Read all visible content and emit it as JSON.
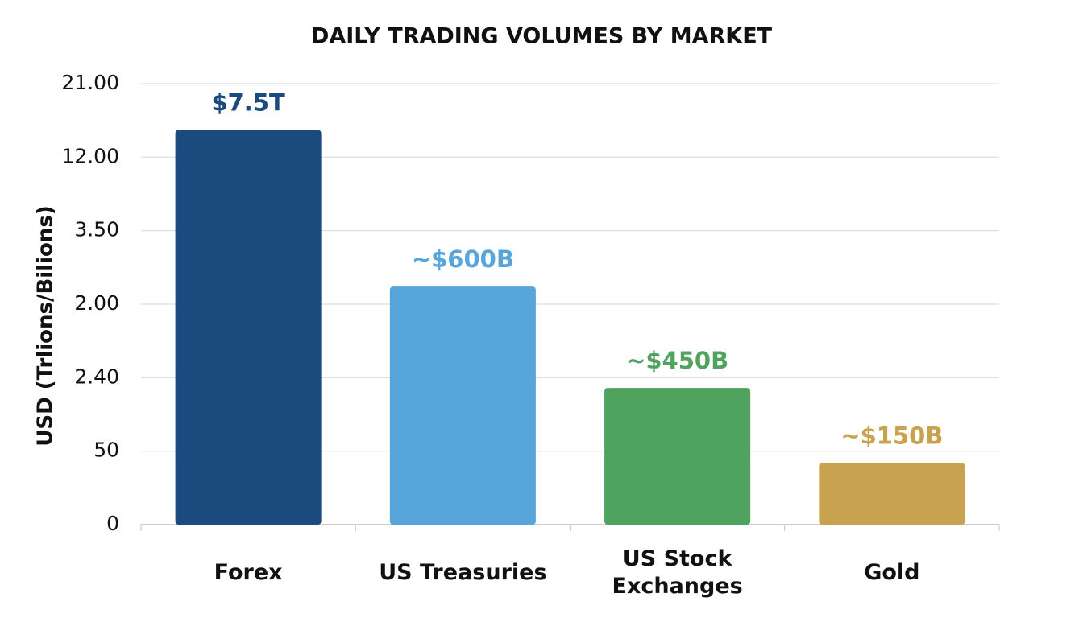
{
  "chart_data": {
    "type": "bar",
    "title": "DAILY TRADING VOLUMES BY MARKET",
    "y_label": "USD (Trlions/Bilions)",
    "categories": [
      "Forex",
      "US Treasuries",
      "US Stock Exchanges",
      "Gold"
    ],
    "values": [
      5.37,
      3.24,
      1.86,
      0.84
    ],
    "colors": [
      "#1a4a7e",
      "#57a5da",
      "#4fa35f",
      "#c9a24f"
    ],
    "annotations": [
      "$7.5T",
      "~$600B",
      "~$450B",
      "~$150B"
    ],
    "ylim": [
      0,
      6
    ],
    "yticks": [
      {
        "value": 0,
        "label": "0"
      },
      {
        "value": 1,
        "label": "50"
      },
      {
        "value": 2,
        "label": "2.40"
      },
      {
        "value": 3,
        "label": "2.00"
      },
      {
        "value": 4,
        "label": "3.50"
      },
      {
        "value": 5,
        "label": "12.00"
      },
      {
        "value": 6,
        "label": "21.00"
      }
    ],
    "grid": true
  }
}
